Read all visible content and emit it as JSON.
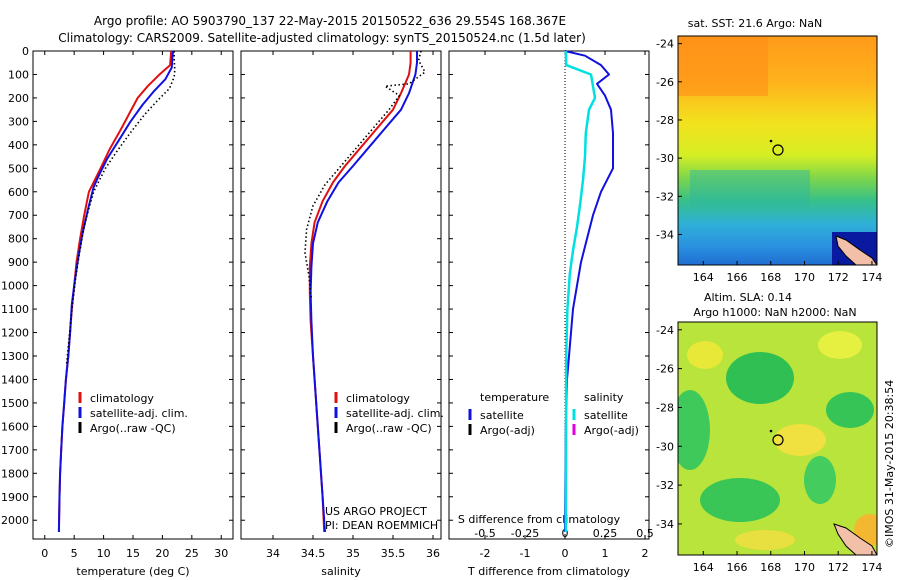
{
  "header": {
    "line1": "Argo profile: AO 5903790_137 22-May-2015 20150522_636 29.554S 168.367E",
    "line2": "Climatology: CARS2009. Satellite-adjusted climatology: synTS_20150524.nc (1.5d later)"
  },
  "colors": {
    "climatology": "#e01010",
    "satellite": "#1010e0",
    "argo": "#000000",
    "salinity_satellite": "#00e0e0",
    "salinity_argo": "#e000e0"
  },
  "side_label": "©IMOS 31-May-2015 20:38:54",
  "project": {
    "line1": "US ARGO PROJECT",
    "line2": "PI: DEAN ROEMMICH"
  },
  "chart_data": [
    {
      "id": "temperature",
      "type": "line",
      "xlabel": "temperature (deg C)",
      "ylabel": "",
      "xlim": [
        -2,
        32
      ],
      "ylim": [
        2080,
        0
      ],
      "xticks": [
        0,
        5,
        10,
        15,
        20,
        25,
        30
      ],
      "yticks": [
        0,
        100,
        200,
        300,
        400,
        500,
        600,
        700,
        800,
        900,
        1000,
        1100,
        1200,
        1300,
        1400,
        1500,
        1600,
        1700,
        1800,
        1900,
        2000
      ],
      "legend": [
        "climatology",
        "satellite-adj. clim.",
        "Argo(..raw -QC)"
      ],
      "legend_position": "lower-center",
      "series": [
        {
          "name": "climatology",
          "style": "red",
          "x": [
            21.5,
            21.3,
            19.5,
            17.5,
            15.8,
            14.5,
            12.8,
            11,
            9.5,
            8.3,
            7.5,
            6.7,
            6,
            5.4,
            5,
            4.6,
            4.3,
            4,
            3.6,
            3.3,
            3,
            2.8,
            2.6,
            2.5,
            2.4
          ],
          "depth": [
            0,
            60,
            100,
            150,
            200,
            260,
            340,
            420,
            500,
            560,
            600,
            700,
            800,
            900,
            1000,
            1100,
            1200,
            1300,
            1400,
            1500,
            1600,
            1700,
            1800,
            1900,
            2050
          ]
        },
        {
          "name": "satellite-adj. clim.",
          "style": "blue",
          "x": [
            21.8,
            21.7,
            21.6,
            20.5,
            18.6,
            16.6,
            14.6,
            12.6,
            10.6,
            9.2,
            8.3,
            7.3,
            6.4,
            5.7,
            5.1,
            4.6,
            4.3,
            4,
            3.6,
            3.3,
            3,
            2.8,
            2.6,
            2.5,
            2.4
          ],
          "depth": [
            0,
            30,
            70,
            120,
            170,
            230,
            300,
            380,
            460,
            530,
            580,
            680,
            780,
            880,
            980,
            1080,
            1200,
            1300,
            1400,
            1500,
            1600,
            1700,
            1800,
            1900,
            2050
          ]
        },
        {
          "name": "Argo(..raw -QC)",
          "style": "black-dotted",
          "x": [
            22,
            22,
            22.1,
            22,
            21.2,
            19.2,
            17,
            14.5,
            12.2,
            10.3,
            9.1,
            8.3,
            7.4,
            6.6,
            5.9,
            5.3,
            4.8,
            4.4,
            4,
            3.7
          ],
          "depth": [
            0,
            40,
            80,
            110,
            160,
            210,
            270,
            350,
            430,
            500,
            560,
            600,
            680,
            760,
            860,
            960,
            1060,
            1160,
            1260,
            1340
          ]
        }
      ]
    },
    {
      "id": "salinity",
      "type": "line",
      "xlabel": "salinity",
      "ylabel": "",
      "xlim": [
        33.6,
        36.1
      ],
      "ylim": [
        2080,
        0
      ],
      "xticks": [
        34,
        34.5,
        35,
        35.5,
        36
      ],
      "legend": [
        "climatology",
        "satellite-adj. clim.",
        "Argo(..raw -QC)"
      ],
      "legend_position": "lower-right",
      "series": [
        {
          "name": "climatology",
          "style": "red",
          "x": [
            35.72,
            35.72,
            35.7,
            35.6,
            35.5,
            35.3,
            35.1,
            34.9,
            34.75,
            34.62,
            34.52,
            34.48,
            34.46,
            34.46,
            34.47,
            34.5,
            34.53,
            34.56,
            34.59,
            34.62,
            34.64
          ],
          "depth": [
            0,
            50,
            100,
            180,
            250,
            330,
            410,
            490,
            560,
            640,
            730,
            820,
            920,
            1030,
            1150,
            1300,
            1450,
            1600,
            1750,
            1900,
            2050
          ]
        },
        {
          "name": "satellite-adj. clim.",
          "style": "blue",
          "x": [
            35.8,
            35.8,
            35.78,
            35.7,
            35.6,
            35.4,
            35.2,
            35,
            34.82,
            34.68,
            34.56,
            34.5,
            34.48,
            34.47,
            34.48,
            34.5,
            34.53,
            34.56,
            34.59,
            34.62,
            34.65
          ],
          "depth": [
            0,
            50,
            100,
            180,
            250,
            330,
            410,
            490,
            560,
            640,
            730,
            820,
            920,
            1030,
            1150,
            1300,
            1450,
            1600,
            1750,
            1900,
            2050
          ]
        },
        {
          "name": "Argo(..raw -QC)",
          "style": "black-dotted",
          "x": [
            35.85,
            35.82,
            35.9,
            35.7,
            35.4,
            35.58,
            35.45,
            35.25,
            35.05,
            34.85,
            34.65,
            34.5,
            34.42,
            34.4,
            34.45,
            34.48
          ],
          "depth": [
            0,
            40,
            90,
            140,
            150,
            190,
            250,
            330,
            410,
            490,
            570,
            660,
            760,
            860,
            960,
            1060
          ]
        }
      ]
    },
    {
      "id": "differences",
      "type": "line",
      "xlabel": "T difference from climatology",
      "x2label": "S difference from climatology",
      "xlim": [
        -2.9,
        2.1
      ],
      "ylim": [
        2080,
        0
      ],
      "xticks": [
        -2,
        -1,
        0,
        1,
        2
      ],
      "x2ticks": [
        -0.5,
        -0.25,
        0,
        0.25,
        0.5
      ],
      "legend_temperature": {
        "title": "temperature",
        "entries": [
          "satellite",
          "Argo(-adj)"
        ]
      },
      "legend_salinity": {
        "title": "salinity",
        "entries": [
          "satellite",
          "Argo(-adj)"
        ]
      },
      "legend_position": "lower-center",
      "series": [
        {
          "name": "temperature satellite",
          "style": "blue",
          "x": [
            0,
            0.5,
            0.9,
            1.1,
            0.8,
            1,
            1.15,
            1.2,
            1.2,
            0.9,
            0.7,
            0.55,
            0.4,
            0.3,
            0.2,
            0.15,
            0.1,
            0.05,
            0.02,
            0
          ],
          "depth": [
            0,
            20,
            60,
            100,
            140,
            190,
            250,
            350,
            500,
            600,
            700,
            800,
            900,
            1000,
            1100,
            1200,
            1300,
            1400,
            1600,
            2050
          ]
        },
        {
          "name": "salinity satellite",
          "style": "cyan",
          "x": [
            0.02,
            0.03,
            0.65,
            0.75,
            0.6,
            0.52,
            0.5,
            0.45,
            0.38,
            0.3,
            0.2,
            0.12,
            0.06,
            0.03,
            0.02
          ],
          "depth": [
            0,
            60,
            100,
            200,
            250,
            350,
            450,
            550,
            650,
            750,
            850,
            950,
            1100,
            1300,
            2050
          ]
        }
      ]
    },
    {
      "id": "sst-map",
      "type": "heatmap",
      "title": "sat. SST: 21.6  Argo: NaN",
      "xlim": [
        162.5,
        174.3
      ],
      "ylim": [
        -35.6,
        -23.6
      ],
      "xticks": [
        164,
        166,
        168,
        170,
        172,
        174
      ],
      "yticks": [
        -24,
        -26,
        -28,
        -30,
        -32,
        -34
      ],
      "float_position": {
        "lon": 168.367,
        "lat": -29.554
      }
    },
    {
      "id": "sla-map",
      "type": "heatmap",
      "title": "Altim. SLA: 0.14",
      "subtitle": "Argo h1000: NaN h2000: NaN",
      "xlim": [
        162.5,
        174.3
      ],
      "ylim": [
        -35.6,
        -23.6
      ],
      "xticks": [
        164,
        166,
        168,
        170,
        172,
        174
      ],
      "yticks": [
        -24,
        -26,
        -28,
        -30,
        -32,
        -34
      ],
      "float_position": {
        "lon": 168.367,
        "lat": -29.554
      }
    }
  ]
}
